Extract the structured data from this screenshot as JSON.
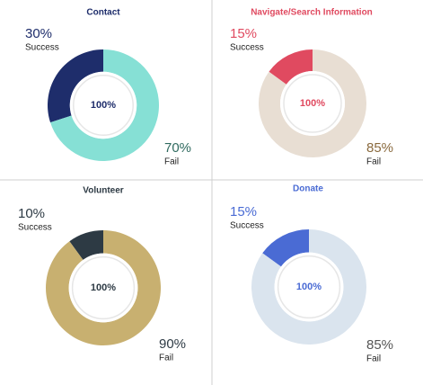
{
  "chart_data": [
    {
      "type": "donut",
      "title": "Contact",
      "title_color": "#1e2d6b",
      "center_label": "100%",
      "center_color": "#1e2d6b",
      "categories": [
        "Success",
        "Fail"
      ],
      "values": [
        30,
        70
      ],
      "value_labels": [
        "30%",
        "70%"
      ],
      "colors": [
        "#1e2d6b",
        "#86e0d5"
      ],
      "label_colors": [
        "#1e2d6b",
        "#2f6a5f"
      ]
    },
    {
      "type": "donut",
      "title": "Navigate/Search Information",
      "title_color": "#e04a60",
      "center_label": "100%",
      "center_color": "#e04a60",
      "categories": [
        "Success",
        "Fail"
      ],
      "values": [
        15,
        85
      ],
      "value_labels": [
        "15%",
        "85%"
      ],
      "colors": [
        "#e04a60",
        "#e8ded3"
      ],
      "label_colors": [
        "#e04a60",
        "#8a6a3e"
      ]
    },
    {
      "type": "donut",
      "title": "Volunteer",
      "title_color": "#2d3a44",
      "center_label": "100%",
      "center_color": "#2d3a44",
      "categories": [
        "Success",
        "Fail"
      ],
      "values": [
        10,
        90
      ],
      "value_labels": [
        "10%",
        "90%"
      ],
      "colors": [
        "#2d3a44",
        "#c8b070"
      ],
      "label_colors": [
        "#2d3a44",
        "#2d3a44"
      ]
    },
    {
      "type": "donut",
      "title": "Donate",
      "title_color": "#4a6bd4",
      "center_label": "100%",
      "center_color": "#4a6bd4",
      "categories": [
        "Success",
        "Fail"
      ],
      "values": [
        15,
        85
      ],
      "value_labels": [
        "15%",
        "85%"
      ],
      "colors": [
        "#4a6bd4",
        "#dae4ee"
      ],
      "label_colors": [
        "#4a6bd4",
        "#555555"
      ]
    }
  ]
}
